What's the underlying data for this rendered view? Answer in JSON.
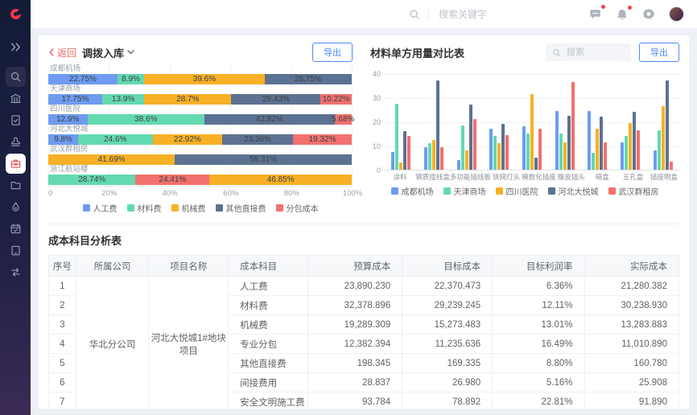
{
  "topbar": {
    "search_placeholder": "搜索关键字",
    "icons": [
      "search-icon",
      "chat-icon",
      "bell-icon",
      "gear-icon",
      "avatar"
    ],
    "badges": {
      "chat": true,
      "bell": true
    }
  },
  "sidebar": {
    "icons": [
      "collapse-icon",
      "search-icon",
      "bank-icon",
      "document-check-icon",
      "stamp-icon",
      "toolbox-icon",
      "folder-icon",
      "drop-icon",
      "calendar-icon",
      "tablet-icon",
      "transfer-icon"
    ],
    "active_icon": "toolbox-icon"
  },
  "left_panel": {
    "back_label": "返回",
    "title": "调拨入库",
    "export_label": "导出"
  },
  "right_panel": {
    "title": "材料单方用量对比表",
    "search_placeholder": "搜索",
    "export_label": "导出"
  },
  "chart_data": [
    {
      "type": "bar",
      "subtype": "horizontal_stacked_percent",
      "title": "调拨入库",
      "x_ticks": [
        "0",
        "20%",
        "40%",
        "60%",
        "80%",
        "100%"
      ],
      "xlim": [
        0,
        100
      ],
      "legend_position": "bottom",
      "series": [
        {
          "name": "人工费",
          "color": "#6E9BF0"
        },
        {
          "name": "材料费",
          "color": "#63D9AF"
        },
        {
          "name": "机械费",
          "color": "#F8B026"
        },
        {
          "name": "其他直接费",
          "color": "#5C7292"
        },
        {
          "name": "分包成本",
          "color": "#F2706D"
        }
      ],
      "categories": [
        {
          "name": "成都机场",
          "segments": [
            {
              "series": "人工费",
              "value": 22.75,
              "label": "22.75%"
            },
            {
              "series": "材料费",
              "value": 8.9,
              "label": "8.9%"
            },
            {
              "series": "机械费",
              "value": 39.6,
              "label": "39.6%"
            },
            {
              "series": "其他直接费",
              "value": 28.75,
              "label": "28.75%"
            }
          ]
        },
        {
          "name": "天津商场",
          "segments": [
            {
              "series": "人工费",
              "value": 17.75,
              "label": "17.75%"
            },
            {
              "series": "材料费",
              "value": 13.9,
              "label": "13.9%"
            },
            {
              "series": "机械费",
              "value": 28.7,
              "label": "28.7%"
            },
            {
              "series": "其他直接费",
              "value": 29.43,
              "label": "29.43%"
            },
            {
              "series": "分包成本",
              "value": 10.22,
              "label": "10.22%"
            }
          ]
        },
        {
          "name": "四川医院",
          "segments": [
            {
              "series": "人工费",
              "value": 12.9,
              "label": "12.9%"
            },
            {
              "series": "材料费",
              "value": 38.6,
              "label": "38.6%"
            },
            {
              "series": "其他直接费",
              "value": 42.82,
              "label": "42.82%"
            },
            {
              "series": "分包成本",
              "value": 5.68,
              "label": "5.68%"
            }
          ]
        },
        {
          "name": "河北大悦城",
          "segments": [
            {
              "series": "人工费",
              "value": 9.8,
              "label": "9.8%"
            },
            {
              "series": "材料费",
              "value": 24.6,
              "label": "24.6%"
            },
            {
              "series": "机械费",
              "value": 22.92,
              "label": "22.92%"
            },
            {
              "series": "其他直接费",
              "value": 23.36,
              "label": "23.36%"
            },
            {
              "series": "分包成本",
              "value": 19.32,
              "label": "19.32%"
            }
          ]
        },
        {
          "name": "武汉群租房",
          "segments": [
            {
              "series": "机械费",
              "value": 41.69,
              "label": "41.69%"
            },
            {
              "series": "其他直接费",
              "value": 58.31,
              "label": "58.31%"
            }
          ]
        },
        {
          "name": "浙江航站楼",
          "segments": [
            {
              "series": "材料费",
              "value": 28.74,
              "label": "28.74%"
            },
            {
              "series": "分包成本",
              "value": 24.41,
              "label": "24.41%"
            },
            {
              "series": "机械费",
              "value": 46.85,
              "label": "46.85%"
            }
          ]
        }
      ]
    },
    {
      "type": "bar",
      "subtype": "grouped_vertical",
      "title": "材料单方用量对比表",
      "ylim": [
        0,
        40
      ],
      "y_ticks": [
        0,
        10,
        20,
        30,
        40
      ],
      "grid": true,
      "legend_position": "bottom",
      "categories": [
        "涂料",
        "钢质接线盒",
        "多功能插线板",
        "铁网灯头",
        "模数化插座",
        "橡皮插头",
        "暗盒",
        "五孔盒",
        "插座明盒"
      ],
      "series": [
        {
          "name": "成都机场",
          "color": "#6E9BF0",
          "values": [
            7.5,
            9.5,
            4,
            17,
            18,
            24.5,
            24.5,
            11.5,
            8
          ]
        },
        {
          "name": "天津商场",
          "color": "#63D9AF",
          "values": [
            27.5,
            11,
            18.5,
            14,
            15,
            15,
            7,
            14,
            16.5
          ]
        },
        {
          "name": "四川医院",
          "color": "#F8B026",
          "values": [
            3,
            12.5,
            8,
            11,
            31.5,
            11.5,
            17,
            19.5,
            26.5
          ]
        },
        {
          "name": "河北大悦城",
          "color": "#5C7292",
          "values": [
            16,
            37,
            27,
            19,
            5,
            22.5,
            22,
            24,
            37
          ]
        },
        {
          "name": "武汉群租房",
          "color": "#F2706D",
          "values": [
            14,
            9.5,
            21,
            14.5,
            17,
            36.5,
            11.5,
            16.5,
            3.5
          ]
        }
      ]
    }
  ],
  "table": {
    "title": "成本科目分析表",
    "headers": [
      "序号",
      "所属公司",
      "项目名称",
      "成本科目",
      "预算成本",
      "目标成本",
      "目标利润率",
      "实际成本"
    ],
    "company": "华北分公司",
    "project": "河北大悦城1#地块项目",
    "rows": [
      {
        "no": "1",
        "subject": "人工费",
        "budget": "23,890.230",
        "target": "22,370.473",
        "margin": "6.36%",
        "actual": "21,280.382"
      },
      {
        "no": "2",
        "subject": "材料费",
        "budget": "32,378.896",
        "target": "29,239.245",
        "margin": "12.11%",
        "actual": "30,238.930"
      },
      {
        "no": "3",
        "subject": "机械费",
        "budget": "19,289.309",
        "target": "15,273.483",
        "margin": "13.01%",
        "actual": "13,283.883"
      },
      {
        "no": "4",
        "subject": "专业分包",
        "budget": "12,382.394",
        "target": "11,235.636",
        "margin": "16.49%",
        "actual": "11,010.890"
      },
      {
        "no": "5",
        "subject": "其他直接费",
        "budget": "198.345",
        "target": "169.335",
        "margin": "8.80%",
        "actual": "160.780"
      },
      {
        "no": "6",
        "subject": "间接费用",
        "budget": "28.837",
        "target": "26.980",
        "margin": "5.16%",
        "actual": "25.908"
      },
      {
        "no": "7",
        "subject": "安全文明施工费",
        "budget": "93.784",
        "target": "78.892",
        "margin": "22.81%",
        "actual": "91.890"
      }
    ]
  },
  "colors": {
    "accent": "#4D8BFF",
    "brand_red": "#F0374C",
    "badge_red": "#F5453D",
    "sidebar_bg_top": "#151D3A",
    "sidebar_bg_bottom": "#3A2B55"
  }
}
